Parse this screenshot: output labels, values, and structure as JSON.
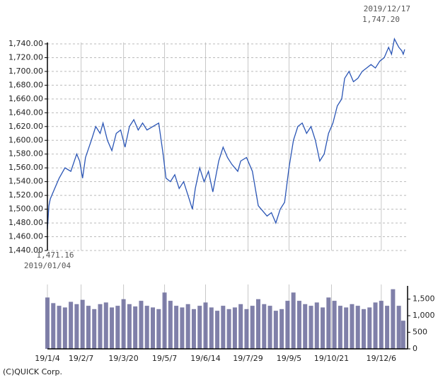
{
  "chart_data": [
    {
      "type": "line",
      "color": "#2a55b5",
      "high": {
        "date": "2019/12/17",
        "label": "1,747.20"
      },
      "low": {
        "date": "2019/01/04",
        "label": "1,471.16"
      },
      "xlim": [
        0,
        245
      ],
      "ylim": [
        1440,
        1740
      ],
      "yticks": [
        {
          "value": 1440,
          "label": "1,440.00"
        },
        {
          "value": 1460,
          "label": "1,460.00"
        },
        {
          "value": 1480,
          "label": "1,480.00"
        },
        {
          "value": 1500,
          "label": "1,500.00"
        },
        {
          "value": 1520,
          "label": "1,520.00"
        },
        {
          "value": 1540,
          "label": "1,540.00"
        },
        {
          "value": 1560,
          "label": "1,560.00"
        },
        {
          "value": 1580,
          "label": "1,580.00"
        },
        {
          "value": 1600,
          "label": "1,600.00"
        },
        {
          "value": 1620,
          "label": "1,620.00"
        },
        {
          "value": 1640,
          "label": "1,640.00"
        },
        {
          "value": 1660,
          "label": "1,660.00"
        },
        {
          "value": 1680,
          "label": "1,680.00"
        },
        {
          "value": 1700,
          "label": "1,700.00"
        },
        {
          "value": 1720,
          "label": "1,720.00"
        },
        {
          "value": 1740,
          "label": "1,740.00"
        }
      ],
      "x": [
        0,
        1,
        2,
        5,
        8,
        12,
        16,
        20,
        22,
        24,
        26,
        30,
        33,
        36,
        38,
        41,
        44,
        47,
        50,
        53,
        56,
        59,
        62,
        65,
        68,
        72,
        76,
        79,
        81,
        84,
        87,
        90,
        93,
        96,
        99,
        101,
        104,
        107,
        110,
        113,
        117,
        120,
        123,
        126,
        130,
        132,
        136,
        140,
        144,
        146,
        150,
        153,
        156,
        159,
        162,
        165,
        168,
        171,
        174,
        177,
        180,
        183,
        186,
        189,
        192,
        195,
        198,
        201,
        203,
        206,
        209,
        212,
        215,
        218,
        221,
        224,
        227,
        230,
        233,
        235,
        237,
        240,
        242,
        243,
        244
      ],
      "values": [
        1471,
        1505,
        1515,
        1530,
        1545,
        1560,
        1555,
        1580,
        1570,
        1545,
        1575,
        1600,
        1620,
        1610,
        1625,
        1600,
        1585,
        1610,
        1615,
        1590,
        1620,
        1630,
        1615,
        1625,
        1615,
        1620,
        1625,
        1580,
        1545,
        1540,
        1550,
        1530,
        1540,
        1520,
        1500,
        1530,
        1560,
        1540,
        1555,
        1525,
        1570,
        1590,
        1575,
        1565,
        1555,
        1570,
        1575,
        1555,
        1505,
        1500,
        1490,
        1495,
        1480,
        1500,
        1510,
        1560,
        1600,
        1620,
        1625,
        1610,
        1620,
        1600,
        1570,
        1580,
        1610,
        1625,
        1650,
        1660,
        1690,
        1700,
        1685,
        1690,
        1700,
        1705,
        1710,
        1705,
        1715,
        1720,
        1735,
        1725,
        1747.2,
        1735,
        1730,
        1725,
        1732
      ]
    },
    {
      "type": "bar",
      "color": "#6a6a9a",
      "source": "(C)QUICK Corp.",
      "xlim": [
        0,
        245
      ],
      "ylim": [
        0,
        1900
      ],
      "yticks": [
        0,
        500,
        {
          "value": 1000,
          "label": "1,000"
        },
        {
          "value": 1500,
          "label": "1,500"
        }
      ],
      "xticks": [
        {
          "value": 0,
          "label": "19/1/4"
        },
        {
          "value": 23,
          "label": "19/2/7"
        },
        {
          "value": 52,
          "label": "19/3/20"
        },
        {
          "value": 80,
          "label": "19/5/7"
        },
        {
          "value": 108,
          "label": "19/6/14"
        },
        {
          "value": 137,
          "label": "19/7/29"
        },
        {
          "value": 165,
          "label": "19/9/5"
        },
        {
          "value": 194,
          "label": "19/10/21"
        },
        {
          "value": 228,
          "label": "19/12/6"
        }
      ],
      "x": [
        0,
        4,
        8,
        12,
        16,
        20,
        24,
        28,
        32,
        36,
        40,
        44,
        48,
        52,
        56,
        60,
        64,
        68,
        72,
        76,
        80,
        84,
        88,
        92,
        96,
        100,
        104,
        108,
        112,
        116,
        120,
        124,
        128,
        132,
        136,
        140,
        144,
        148,
        152,
        156,
        160,
        164,
        168,
        172,
        176,
        180,
        184,
        188,
        192,
        196,
        200,
        204,
        208,
        212,
        216,
        220,
        224,
        228,
        232,
        236,
        240,
        243
      ],
      "values": [
        1550,
        1380,
        1300,
        1250,
        1420,
        1350,
        1480,
        1300,
        1200,
        1350,
        1400,
        1250,
        1300,
        1500,
        1350,
        1280,
        1450,
        1300,
        1250,
        1200,
        1700,
        1450,
        1300,
        1250,
        1350,
        1200,
        1300,
        1400,
        1250,
        1150,
        1300,
        1200,
        1250,
        1350,
        1200,
        1300,
        1500,
        1350,
        1300,
        1150,
        1200,
        1450,
        1700,
        1450,
        1350,
        1300,
        1400,
        1250,
        1550,
        1450,
        1300,
        1250,
        1350,
        1300,
        1200,
        1250,
        1400,
        1450,
        1300,
        1800,
        1300,
        850
      ]
    }
  ]
}
